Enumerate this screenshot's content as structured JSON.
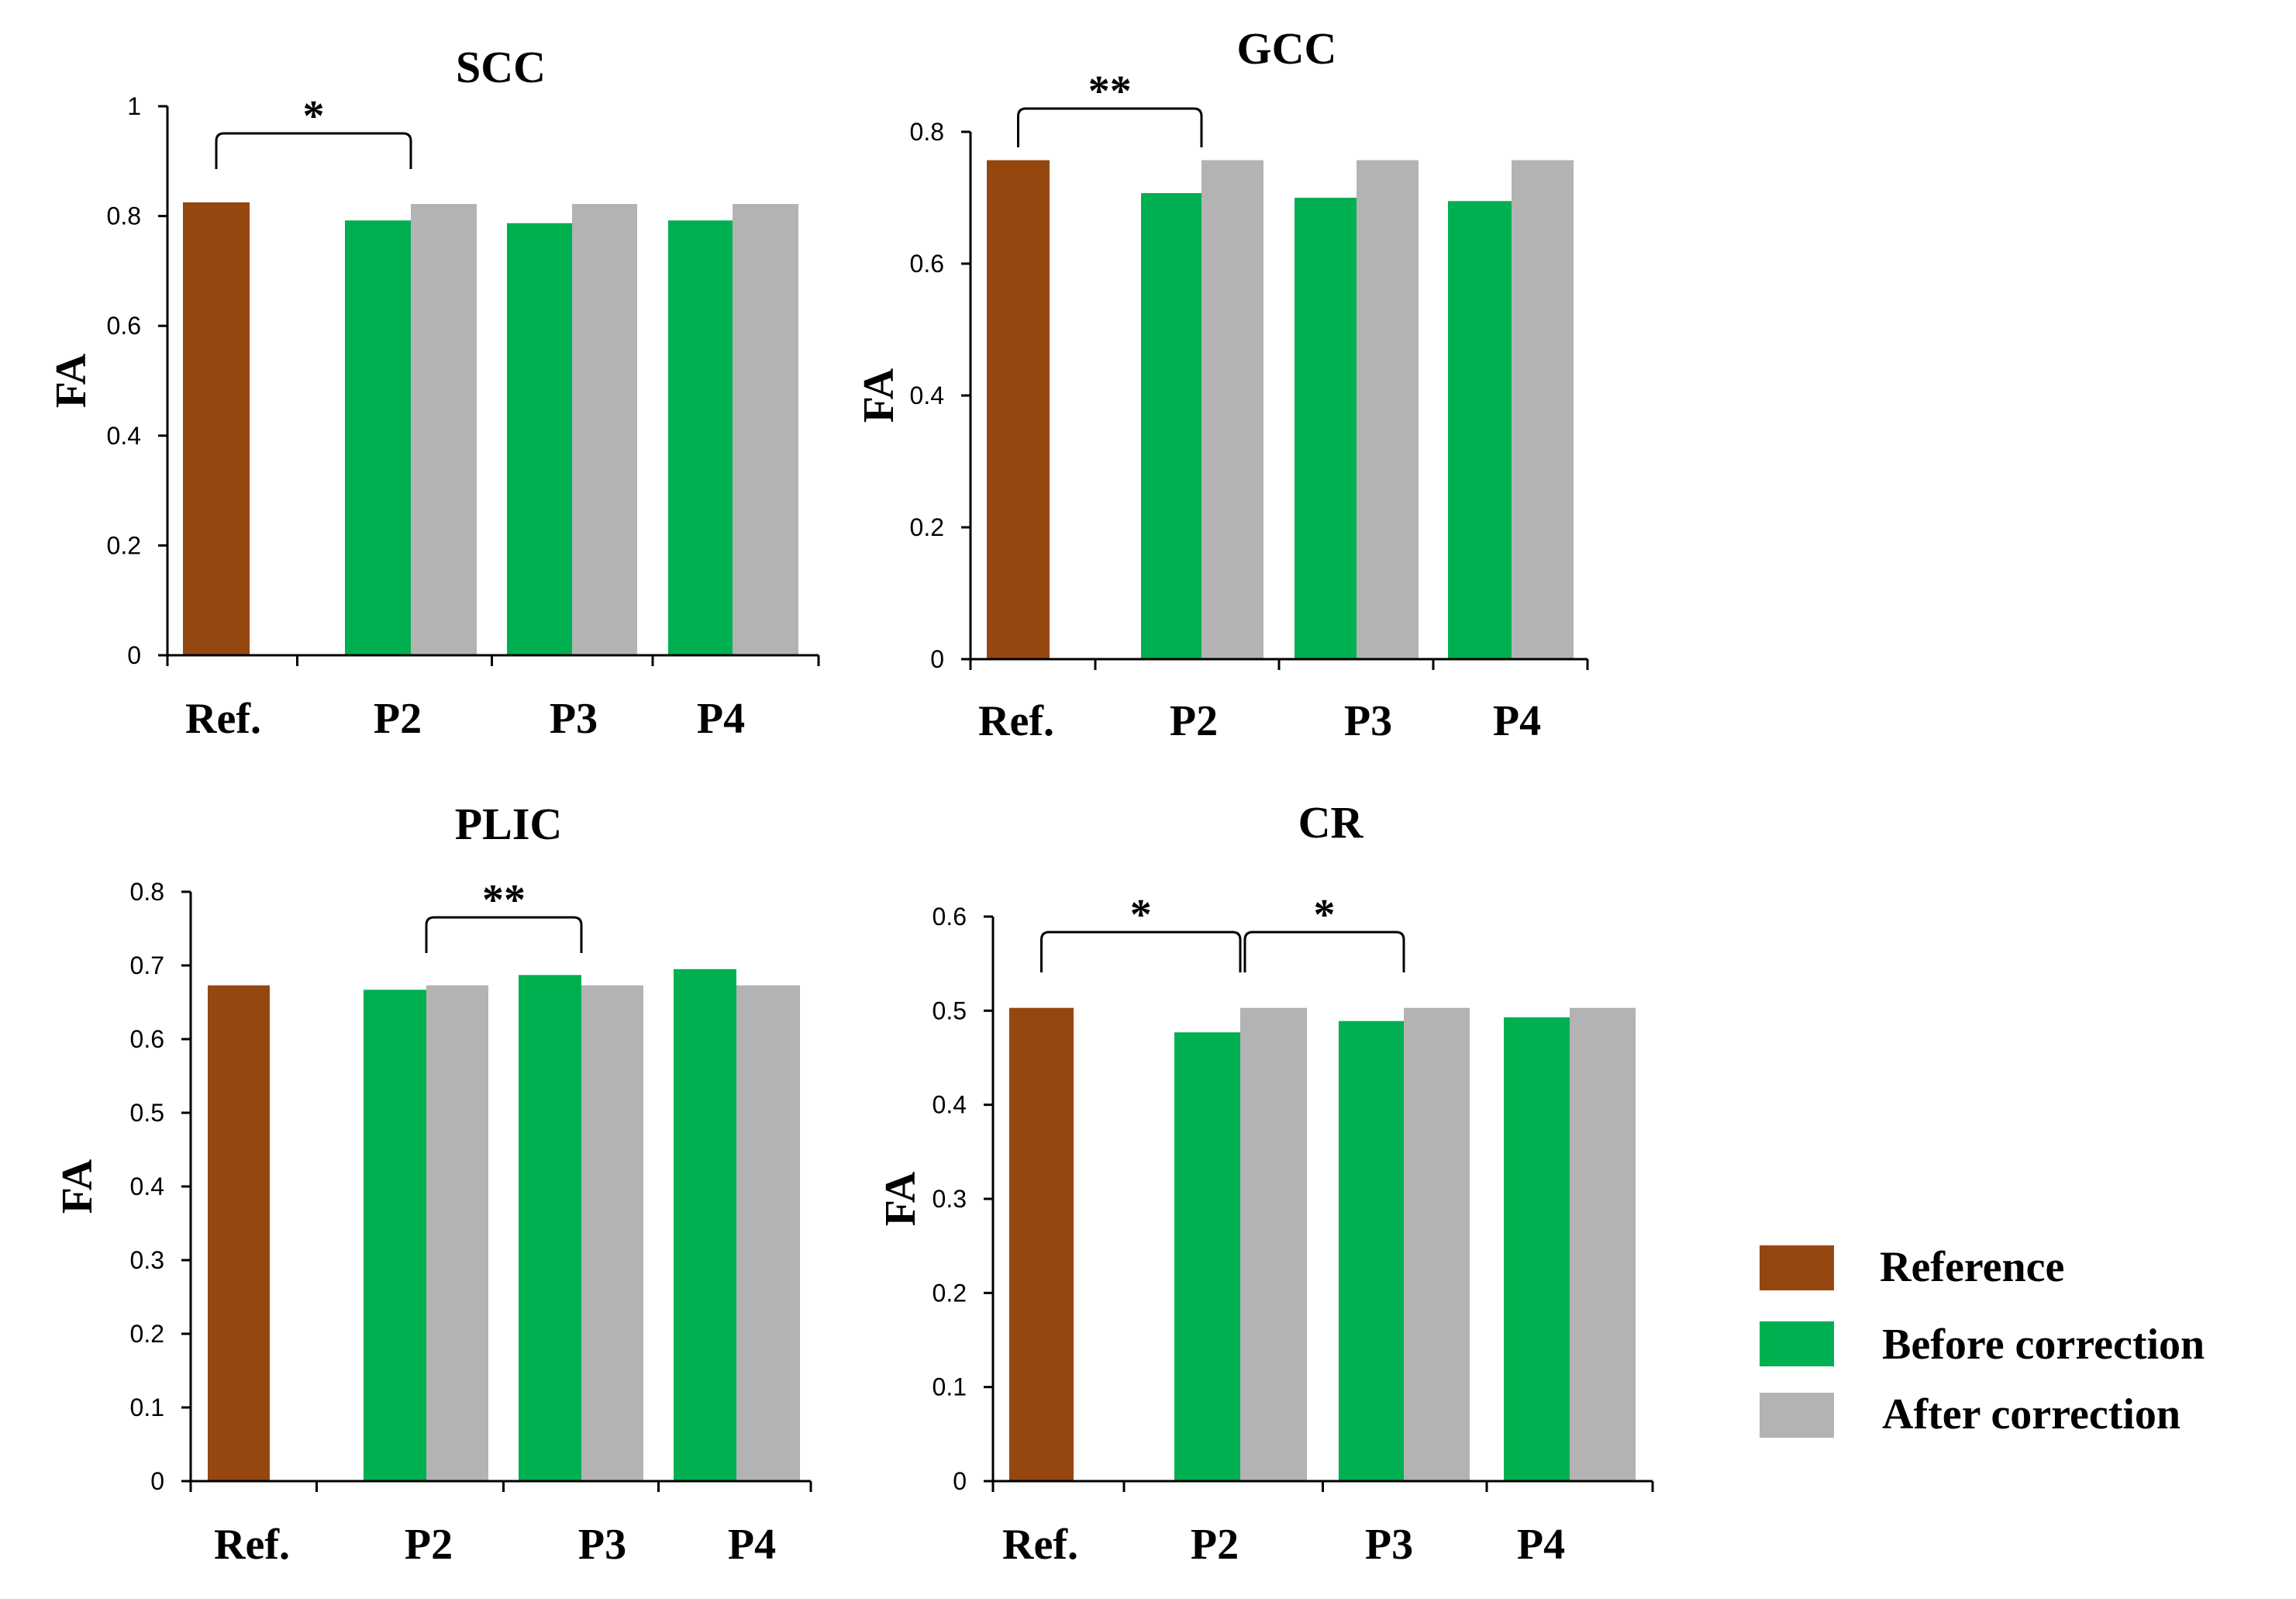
{
  "series_names": [
    "Reference",
    "Before correction",
    "After correction"
  ],
  "colors": {
    "reference": "#954710",
    "before": "#00B050",
    "after": "#B3B3B3"
  },
  "legend": {
    "reference": "Reference",
    "before": "Before correction",
    "after": "After correction"
  },
  "chart_data": [
    {
      "type": "bar",
      "title": "SCC",
      "ylabel": "FA",
      "ylim": [
        0,
        1
      ],
      "yticks": [
        "0",
        "0.2",
        "0.4",
        "0.6",
        "0.8",
        "1"
      ],
      "categories": [
        "Ref.",
        "P2",
        "P3",
        "P4"
      ],
      "series": [
        {
          "name": "Reference",
          "values": [
            0.825,
            null,
            null,
            null
          ]
        },
        {
          "name": "Before correction",
          "values": [
            null,
            0.792,
            0.787,
            0.792
          ]
        },
        {
          "name": "After correction",
          "values": [
            null,
            0.822,
            0.822,
            0.822
          ]
        }
      ],
      "significance": [
        {
          "from": "Ref.",
          "to": "P2",
          "label": "*"
        }
      ]
    },
    {
      "type": "bar",
      "title": "GCC",
      "ylabel": "FA",
      "ylim": [
        0,
        0.8
      ],
      "yticks": [
        "0",
        "0.2",
        "0.4",
        "0.6",
        "0.8"
      ],
      "categories": [
        "Ref.",
        "P2",
        "P3",
        "P4"
      ],
      "series": [
        {
          "name": "Reference",
          "values": [
            0.757,
            null,
            null,
            null
          ]
        },
        {
          "name": "Before correction",
          "values": [
            null,
            0.707,
            0.7,
            0.695
          ]
        },
        {
          "name": "After correction",
          "values": [
            null,
            0.757,
            0.757,
            0.757
          ]
        }
      ],
      "significance": [
        {
          "from": "Ref.",
          "to": "P2",
          "label": "**"
        }
      ]
    },
    {
      "type": "bar",
      "title": "PLIC",
      "ylabel": "FA",
      "ylim": [
        0,
        0.8
      ],
      "yticks": [
        "0",
        "0.1",
        "0.2",
        "0.3",
        "0.4",
        "0.5",
        "0.6",
        "0.7",
        "0.8"
      ],
      "categories": [
        "Ref.",
        "P2",
        "P3",
        "P4"
      ],
      "series": [
        {
          "name": "Reference",
          "values": [
            0.673,
            null,
            null,
            null
          ]
        },
        {
          "name": "Before correction",
          "values": [
            null,
            0.667,
            0.687,
            0.695
          ]
        },
        {
          "name": "After correction",
          "values": [
            null,
            0.673,
            0.673,
            0.673
          ]
        }
      ],
      "significance": [
        {
          "from": "P2",
          "to": "P3",
          "label": "**"
        }
      ]
    },
    {
      "type": "bar",
      "title": "CR",
      "ylabel": "FA",
      "ylim": [
        0,
        0.6
      ],
      "yticks": [
        "0",
        "0.1",
        "0.2",
        "0.3",
        "0.4",
        "0.5",
        "0.6"
      ],
      "categories": [
        "Ref.",
        "P2",
        "P3",
        "P4"
      ],
      "series": [
        {
          "name": "Reference",
          "values": [
            0.503,
            null,
            null,
            null
          ]
        },
        {
          "name": "Before correction",
          "values": [
            null,
            0.477,
            0.489,
            0.493
          ]
        },
        {
          "name": "After correction",
          "values": [
            null,
            0.503,
            0.503,
            0.503
          ]
        }
      ],
      "significance": [
        {
          "from": "Ref.",
          "to": "P2",
          "label": "*"
        },
        {
          "from": "P2",
          "to": "P3",
          "label": "*"
        }
      ]
    }
  ]
}
